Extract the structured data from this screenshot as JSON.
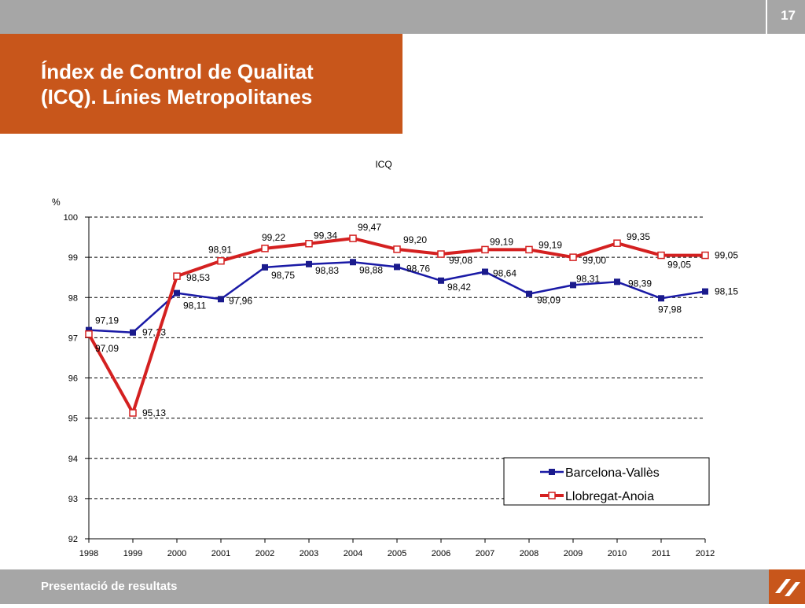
{
  "header": {
    "page_number": "17"
  },
  "title": {
    "line1": "Índex de Control de Qualitat",
    "line2": "(ICQ). Línies Metropolitanes"
  },
  "footer": {
    "text": "Presentació de resultats"
  },
  "logo": {
    "icon": "ferrocarrils-logo-icon"
  },
  "colors": {
    "orange": "#c8561b",
    "gray": "#a6a6a6",
    "series1": "#1a1aa6",
    "series2": "#d42020"
  },
  "chart_data": {
    "type": "line",
    "title": "ICQ",
    "ylabel": "%",
    "ylim": [
      92,
      100
    ],
    "yticks": [
      92,
      93,
      94,
      95,
      96,
      97,
      98,
      99,
      100
    ],
    "grid": true,
    "legend_position": "bottom-right",
    "x": [
      "1998",
      "1999",
      "2000",
      "2001",
      "2002",
      "2003",
      "2004",
      "2005",
      "2006",
      "2007",
      "2008",
      "2009",
      "2010",
      "2011",
      "2012"
    ],
    "series": [
      {
        "name": "Barcelona-Vallès",
        "values": [
          97.19,
          97.13,
          98.11,
          97.96,
          98.75,
          98.83,
          98.88,
          98.76,
          98.42,
          98.64,
          98.09,
          98.31,
          98.39,
          97.98,
          98.15
        ],
        "labels": [
          "97,19",
          "97,13",
          "98,11",
          "97,96",
          "98,75",
          "98,83",
          "98,88",
          "98,76",
          "98,42",
          "98,64",
          "98,09",
          "98,31",
          "98,39",
          "97,98",
          "98,15"
        ]
      },
      {
        "name": "Llobregat-Anoia",
        "values": [
          97.09,
          95.13,
          98.53,
          98.91,
          99.22,
          99.34,
          99.47,
          99.2,
          99.08,
          99.19,
          99.19,
          99.0,
          99.35,
          99.05,
          99.05
        ],
        "labels": [
          "97,09",
          "95,13",
          "98,53",
          "98,91",
          "99,22",
          "99,34",
          "99,47",
          "99,20",
          "99,08",
          "99,19",
          "99,19",
          "99,00",
          "99,35",
          "99,05",
          "99,05"
        ]
      }
    ]
  }
}
